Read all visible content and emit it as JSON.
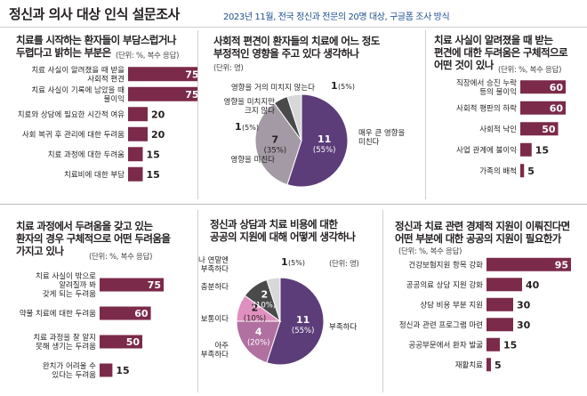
{
  "header": {
    "title": "정신과 의사 대상 인식 설문조사",
    "subtitle": "2023년 11월, 전국 정신과 전문의 20명 대상, 구글폼 조사 방식"
  },
  "chart_data": [
    {
      "id": "q1",
      "type": "bar",
      "title": [
        "치료를 시작하는 환자들이 부담스럽거나",
        "두렵다고 밝히는 부분은"
      ],
      "unit": "(단위: %, 복수 응답)",
      "categories": [
        [
          "치료 사실이 알려졌을 때 받을",
          "사회적 편견"
        ],
        [
          "치료 사실이 기록에 남았을 때",
          "불이익"
        ],
        [
          "치료와 상담에 필요한 시간적 여유"
        ],
        [
          "사회 복귀 후 관리에 대한 두려움"
        ],
        [
          "치료 과정에 대한 두려움"
        ],
        [
          "치료비에 대한 부담"
        ]
      ],
      "values": [
        75,
        75,
        20,
        20,
        15,
        15
      ],
      "xlim": [
        0,
        100
      ]
    },
    {
      "id": "q2",
      "type": "pie",
      "title": [
        "사회적 편견이 환자들의 치료에 어느 정도",
        "부정적인 영향을 주고 있다 생각하나"
      ],
      "unit": "(단위: 명)",
      "slices": [
        {
          "label": [
            "매우 큰 영향을",
            "미친다"
          ],
          "count": 11,
          "percent": "(55%)"
        },
        {
          "label": [
            "영향을 미친다"
          ],
          "count": 7,
          "percent": "(35%)"
        },
        {
          "label": [
            "영향을 미치지만",
            "크지 않다"
          ],
          "count": 1,
          "percent": "(5%)"
        },
        {
          "label": [
            "영향을 거의 미치지 않는다"
          ],
          "count": 1,
          "percent": "(5%)"
        }
      ]
    },
    {
      "id": "q3",
      "type": "bar",
      "title": [
        "치료 사실이 알려졌을 때 받는",
        "편견에 대한 두려움은 구체적으로",
        "어떤 것이 있나"
      ],
      "unit": "(단위: %, 복수 응답)",
      "categories": [
        [
          "직장에서 승진 누락",
          "등의 불이익"
        ],
        [
          "사회적 평판의 하락"
        ],
        [
          "사회적 낙인"
        ],
        [
          "사업 관계에 불이익"
        ],
        [
          "가족의 배척"
        ]
      ],
      "values": [
        60,
        60,
        50,
        15,
        5
      ],
      "xlim": [
        0,
        100
      ]
    },
    {
      "id": "q4",
      "type": "bar",
      "title": [
        "치료 과정에서 두려움을 갖고 있는",
        "환자의 경우 구체적으로 어떤 두려움을",
        "가지고 있나"
      ],
      "unit": "(단위: %, 복수 응답)",
      "categories": [
        [
          "치료 사실이 밖으로",
          "알려질까 봐",
          "갖게 되는 두려움"
        ],
        [
          "약물 치료에 대한 두려움"
        ],
        [
          "치료 과정을 잘 알지",
          "못해 생기는 두려움"
        ],
        [
          "완치가 어려울 수",
          "있다는 두려움"
        ]
      ],
      "values": [
        75,
        60,
        50,
        15
      ],
      "xlim": [
        0,
        100
      ]
    },
    {
      "id": "q5",
      "type": "pie",
      "title": [
        "정신과 상담과 치료 비용에 대한",
        "공공의 지원에 대해 어떻게 생각하나"
      ],
      "unit": "(단위: 명)",
      "slices": [
        {
          "label": [
            "부족하다"
          ],
          "count": 11,
          "percent": "(55%)"
        },
        {
          "label": [
            "아주",
            "부족하다"
          ],
          "count": 4,
          "percent": "(20%)"
        },
        {
          "label": [
            "보통이다"
          ],
          "count": 2,
          "percent": "(10%)"
        },
        {
          "label": [
            "충분하다"
          ],
          "count": 2,
          "percent": "(10%)"
        },
        {
          "label": [
            "충분하나 연말엔",
            "부족하다"
          ],
          "count": 1,
          "percent": "(5%)"
        }
      ]
    },
    {
      "id": "q6",
      "type": "bar",
      "title": [
        "정신과 치료 관련 경제적 지원이 이뤄진다면",
        "어떤 부분에 대한 공공의 지원이 필요한가"
      ],
      "unit": "(단위: %, 복수 응답)",
      "categories": [
        [
          "건강보험지원 항목 강화"
        ],
        [
          "공공의료 상담 지원 강화"
        ],
        [
          "상담 비용 부분 지원"
        ],
        [
          "정신과 관련 프로그램 마련"
        ],
        [
          "공공부문에서 환자 발굴"
        ],
        [
          "재활치료"
        ]
      ],
      "values": [
        95,
        40,
        30,
        30,
        15,
        5
      ],
      "xlim": [
        0,
        100
      ]
    }
  ]
}
